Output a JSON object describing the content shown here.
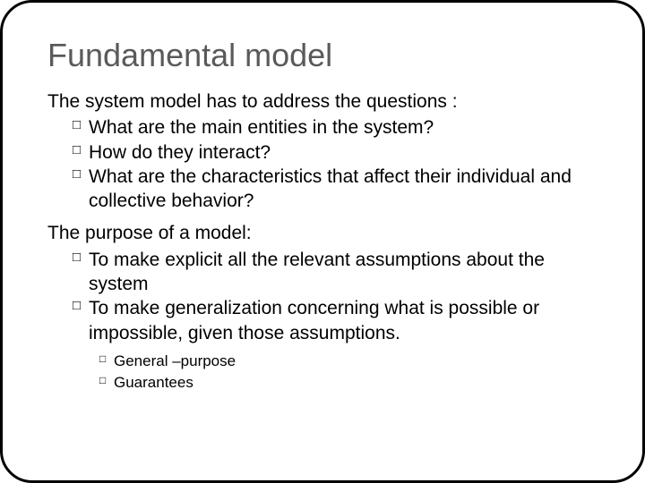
{
  "slide": {
    "title": "Fundamental model",
    "title_color": "#5a5a5a",
    "title_fontsize": 36,
    "background_color": "#ffffff",
    "border_color": "#000000",
    "border_width": 3,
    "border_radius": 36,
    "section1": {
      "intro": "The system model has to address the questions :",
      "items": [
        "What are the main entities in the system?",
        "How do they interact?",
        "What are the characteristics that affect their individual and collective behavior?"
      ]
    },
    "section2": {
      "intro": "The purpose of a model:",
      "items": [
        "To make explicit all the relevant assumptions about the system",
        "To make generalization concerning what is possible or impossible,  given those assumptions."
      ],
      "subitems": [
        "General –purpose",
        "Guarantees"
      ]
    },
    "body_fontsize": 21,
    "sub_fontsize": 17,
    "text_color": "#000000",
    "bullet_style": "hollow-square"
  }
}
